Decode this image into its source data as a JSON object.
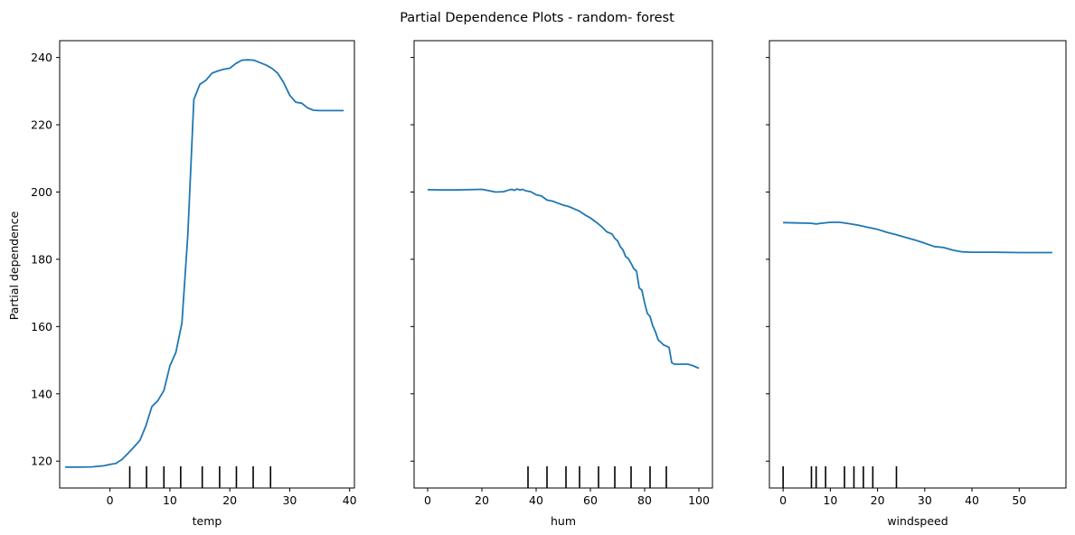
{
  "figure": {
    "title": "Partial Dependence Plots - random- forest",
    "ylabel": "Partial dependence"
  },
  "chart_data": [
    {
      "type": "line",
      "xlabel": "temp",
      "ylabel": "Partial dependence",
      "xlim": [
        -8.4,
        40.8
      ],
      "ylim": [
        112,
        245
      ],
      "xticks": [
        0,
        10,
        20,
        30,
        40
      ],
      "yticks": [
        120,
        140,
        160,
        180,
        200,
        220,
        240
      ],
      "color": "#1f77b4",
      "deciles": [
        3.3,
        6.1,
        9.0,
        11.8,
        15.4,
        18.3,
        21.1,
        23.9,
        26.8
      ],
      "series": [
        {
          "x": [
            -7.5,
            -5,
            -3,
            -1,
            0,
            1,
            2,
            3,
            4,
            5,
            6,
            7,
            8,
            9,
            10,
            11,
            12,
            13,
            14,
            15,
            16,
            17,
            18,
            19,
            20,
            21,
            22,
            23,
            24,
            25,
            26,
            27,
            28,
            29,
            30,
            31,
            32,
            33,
            34,
            35,
            36,
            37,
            38,
            39
          ],
          "y": [
            118.2,
            118.2,
            118.3,
            118.6,
            119.0,
            119.3,
            120.5,
            122.3,
            124.2,
            126.2,
            130.5,
            136.2,
            138.0,
            141.0,
            148.3,
            152.3,
            161.0,
            187.5,
            227.5,
            232.0,
            233.2,
            235.3,
            236.0,
            236.5,
            236.8,
            238.2,
            239.2,
            239.3,
            239.2,
            238.5,
            237.8,
            236.8,
            235.3,
            232.5,
            228.8,
            226.7,
            226.4,
            225.0,
            224.3,
            224.2,
            224.2,
            224.2,
            224.2,
            224.2
          ]
        }
      ]
    },
    {
      "type": "line",
      "xlabel": "hum",
      "xlim": [
        -5,
        105
      ],
      "ylim": [
        112,
        245
      ],
      "xticks": [
        0,
        20,
        40,
        60,
        80,
        100
      ],
      "yticks": [
        120,
        140,
        160,
        180,
        200,
        220,
        240
      ],
      "color": "#1f77b4",
      "deciles": [
        37,
        44,
        51,
        56,
        63,
        69,
        75,
        82,
        88
      ],
      "series": [
        {
          "x": [
            0,
            5,
            10,
            15,
            20,
            22,
            25,
            28,
            30,
            31,
            32,
            33,
            34,
            35,
            36,
            38,
            40,
            42,
            44,
            46,
            48,
            50,
            52,
            54,
            56,
            58,
            60,
            62,
            64,
            66,
            68,
            69,
            70,
            71,
            72,
            73,
            74,
            75,
            76,
            77,
            78,
            79,
            80,
            81,
            82,
            83,
            84,
            85,
            86,
            87,
            88,
            89,
            90,
            91,
            92,
            94,
            96,
            98,
            100
          ],
          "y": [
            200.7,
            200.6,
            200.6,
            200.7,
            200.8,
            200.5,
            200.0,
            200.1,
            200.6,
            200.8,
            200.5,
            200.9,
            200.6,
            200.8,
            200.4,
            200.1,
            199.2,
            198.8,
            197.6,
            197.3,
            196.7,
            196.1,
            195.7,
            195.0,
            194.3,
            193.2,
            192.3,
            191.1,
            189.8,
            188.2,
            187.5,
            186.2,
            185.5,
            183.8,
            182.8,
            180.8,
            180.2,
            178.8,
            177.2,
            176.5,
            171.5,
            170.8,
            167.0,
            163.9,
            163.0,
            160.2,
            158.4,
            156.0,
            155.3,
            154.5,
            154.2,
            153.8,
            149.2,
            148.8,
            148.8,
            148.8,
            148.8,
            148.3,
            147.6
          ]
        }
      ]
    },
    {
      "type": "line",
      "xlabel": "windspeed",
      "xlim": [
        -2.9,
        59.9
      ],
      "ylim": [
        112,
        245
      ],
      "xticks": [
        0,
        10,
        20,
        30,
        40,
        50
      ],
      "yticks": [
        120,
        140,
        160,
        180,
        200,
        220,
        240
      ],
      "color": "#1f77b4",
      "deciles": [
        0,
        6.0,
        7.0,
        9.0,
        13.0,
        15.0,
        17.0,
        19.0,
        24.0
      ],
      "series": [
        {
          "x": [
            0,
            3,
            6,
            7,
            8,
            10,
            12,
            14,
            16,
            18,
            20,
            22,
            24,
            26,
            28,
            30,
            32,
            34,
            36,
            38,
            40,
            45,
            50,
            57
          ],
          "y": [
            190.9,
            190.8,
            190.7,
            190.5,
            190.7,
            191.0,
            191.0,
            190.6,
            190.1,
            189.5,
            188.9,
            188.0,
            187.3,
            186.5,
            185.7,
            184.8,
            183.8,
            183.5,
            182.7,
            182.2,
            182.1,
            182.1,
            182.0,
            182.0
          ]
        }
      ]
    }
  ]
}
